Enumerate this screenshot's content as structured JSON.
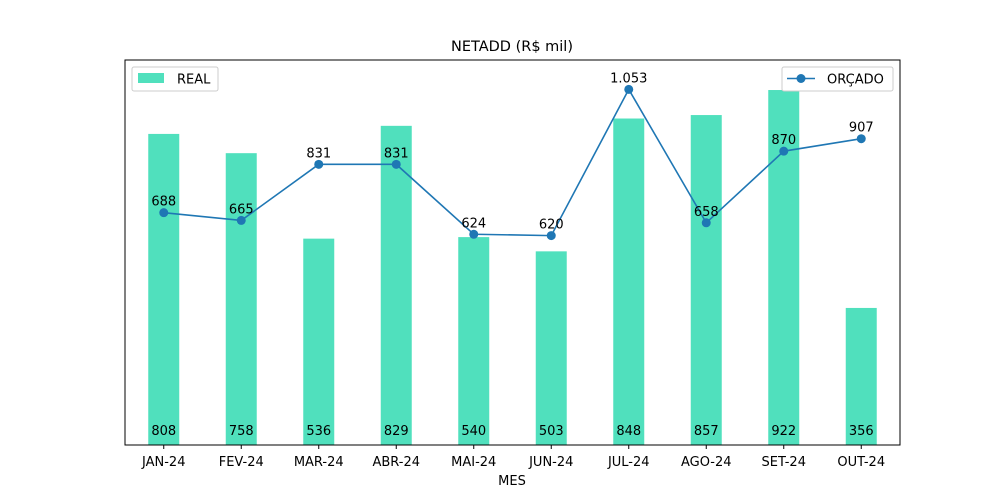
{
  "chart_data": {
    "type": "bar+line",
    "title": "NETADD (R$ mil)",
    "xlabel": "MES",
    "ylabel": "",
    "categories": [
      "JAN-24",
      "FEV-24",
      "MAR-24",
      "ABR-24",
      "MAI-24",
      "JUN-24",
      "JUL-24",
      "AGO-24",
      "SET-24",
      "OUT-24"
    ],
    "bar_series": {
      "name": "REAL",
      "color": "#50e0bd",
      "values": [
        808,
        758,
        536,
        829,
        540,
        503,
        848,
        857,
        922,
        356
      ],
      "labels": [
        "808",
        "758",
        "536",
        "829",
        "540",
        "503",
        "848",
        "857",
        "922",
        "356"
      ],
      "ylim": [
        0,
        1000
      ],
      "legend": "upper-left"
    },
    "line_series": {
      "name": "ORÇADO",
      "color": "#1f77b4",
      "values": [
        688,
        665,
        831,
        831,
        624,
        620,
        1053,
        658,
        870,
        907
      ],
      "labels": [
        "688",
        "665",
        "831",
        "831",
        "624",
        "620",
        "1.053",
        "658",
        "870",
        "907"
      ],
      "ylim": [
        0,
        1140
      ],
      "legend": "upper-right"
    },
    "grid": false
  }
}
